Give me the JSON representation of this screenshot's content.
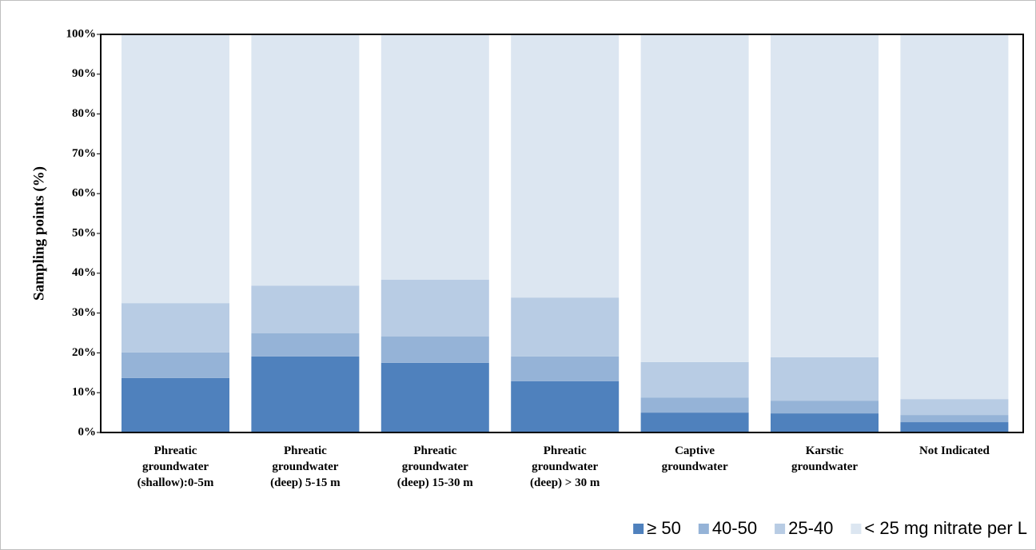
{
  "chart_data": {
    "type": "stacked-bar",
    "y_label": "Sampling points (%)",
    "categories": [
      [
        "Phreatic",
        "groundwater",
        "(shallow):0-5m"
      ],
      [
        "Phreatic",
        "groundwater",
        "(deep) 5-15 m"
      ],
      [
        "Phreatic",
        "groundwater",
        "(deep) 15-30 m"
      ],
      [
        "Phreatic",
        "groundwater",
        "(deep) > 30 m"
      ],
      [
        "Captive",
        "groundwater"
      ],
      [
        "Karstic",
        "groundwater"
      ],
      [
        "Not Indicated"
      ]
    ],
    "series": [
      {
        "name": "≥ 50",
        "color": "#4f81bd",
        "values": [
          13.7,
          19.1,
          17.5,
          12.9,
          5.0,
          4.8,
          2.6
        ]
      },
      {
        "name": "40-50",
        "color": "#95b3d7",
        "values": [
          6.4,
          5.8,
          6.6,
          6.2,
          3.8,
          3.2,
          1.8
        ]
      },
      {
        "name": "25-40",
        "color": "#b8cce4",
        "values": [
          12.4,
          12.0,
          14.3,
          14.8,
          8.9,
          10.9,
          4.0
        ]
      },
      {
        "name": "< 25 mg nitrate per L",
        "color": "#dce6f1",
        "values": [
          67.5,
          63.1,
          61.6,
          66.1,
          82.3,
          81.1,
          91.6
        ]
      }
    ],
    "ylim": [
      0,
      100
    ],
    "yticks": [
      {
        "value": 0,
        "label": "0%"
      },
      {
        "value": 10,
        "label": "10%"
      },
      {
        "value": 20,
        "label": "20%"
      },
      {
        "value": 30,
        "label": "30%"
      },
      {
        "value": 40,
        "label": "40%"
      },
      {
        "value": 50,
        "label": "50%"
      },
      {
        "value": 60,
        "label": "60%"
      },
      {
        "value": 70,
        "label": "70%"
      },
      {
        "value": 80,
        "label": "80%"
      },
      {
        "value": 90,
        "label": "90%"
      },
      {
        "value": 100,
        "label": "100%"
      }
    ],
    "legend": "bottom-right"
  }
}
